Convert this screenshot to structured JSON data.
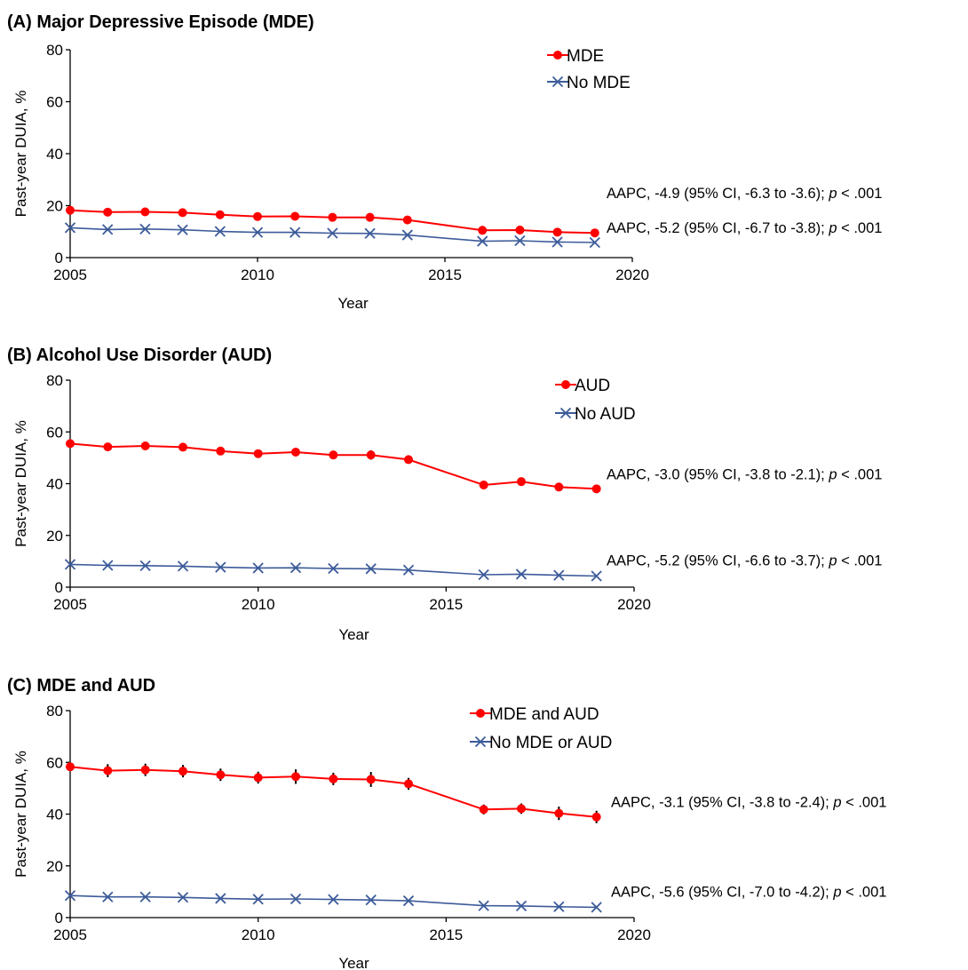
{
  "figure": {
    "background": "#ffffff"
  },
  "chart_data": [
    {
      "type": "line",
      "title": "(A) Major Depressive Episode (MDE)",
      "xlabel": "Year",
      "ylabel": "Past-year DUIA, %",
      "xlim": [
        2005,
        2020
      ],
      "ylim": [
        0,
        80
      ],
      "xticks": [
        "2005",
        "2010",
        "2015",
        "2020"
      ],
      "yticks": [
        "0",
        "20",
        "40",
        "60",
        "80"
      ],
      "grid": false,
      "legend_position": "top-right",
      "x": [
        2005,
        2006,
        2007,
        2008,
        2009,
        2010,
        2011,
        2012,
        2013,
        2014,
        2016,
        2017,
        2018,
        2019
      ],
      "series": [
        {
          "name": "MDE",
          "color": "#ff0000",
          "marker": "circle",
          "values": [
            18.2,
            17.5,
            17.6,
            17.3,
            16.5,
            15.8,
            15.9,
            15.5,
            15.5,
            14.5,
            10.5,
            10.6,
            9.8,
            9.5
          ],
          "error": [
            0.7,
            0.7,
            0.7,
            0.7,
            0.7,
            0.6,
            0.6,
            0.6,
            0.6,
            0.6,
            0.5,
            0.5,
            0.5,
            0.5
          ],
          "annotation": "AAPC, -4.9 (95% CI, -6.3 to -3.6); "
        },
        {
          "name": "No MDE",
          "color": "#3c5b9a",
          "marker": "x",
          "values": [
            11.5,
            10.8,
            11.0,
            10.7,
            10.1,
            9.7,
            9.7,
            9.4,
            9.3,
            8.7,
            6.3,
            6.5,
            6.0,
            5.8
          ],
          "annotation": "AAPC, -5.2 (95% CI, -6.7 to -3.8); "
        }
      ]
    },
    {
      "type": "line",
      "title": "(B) Alcohol Use Disorder (AUD)",
      "xlabel": "Year",
      "ylabel": "Past-year DUIA, %",
      "xlim": [
        2005,
        2020
      ],
      "ylim": [
        0,
        80
      ],
      "xticks": [
        "2005",
        "2010",
        "2015",
        "2020"
      ],
      "yticks": [
        "0",
        "20",
        "40",
        "60",
        "80"
      ],
      "grid": false,
      "legend_position": "top-right",
      "x": [
        2005,
        2006,
        2007,
        2008,
        2009,
        2010,
        2011,
        2012,
        2013,
        2014,
        2016,
        2017,
        2018,
        2019
      ],
      "series": [
        {
          "name": "AUD",
          "color": "#ff0000",
          "marker": "circle",
          "values": [
            55.5,
            54.2,
            54.6,
            54.1,
            52.6,
            51.6,
            52.2,
            51.1,
            51.1,
            49.3,
            39.5,
            40.8,
            38.7,
            38.0
          ],
          "error": [
            1.2,
            1.2,
            1.3,
            1.2,
            1.2,
            1.2,
            1.6,
            1.3,
            1.8,
            1.3,
            1.0,
            1.0,
            1.4,
            1.4
          ],
          "annotation": "AAPC, -3.0 (95% CI, -3.8 to -2.1); "
        },
        {
          "name": "No AUD",
          "color": "#3c5b9a",
          "marker": "x",
          "values": [
            8.8,
            8.4,
            8.3,
            8.1,
            7.7,
            7.4,
            7.5,
            7.2,
            7.1,
            6.6,
            4.8,
            5.0,
            4.6,
            4.3
          ],
          "annotation": "AAPC, -5.2 (95% CI, -6.6 to -3.7); "
        }
      ]
    },
    {
      "type": "line",
      "title": "(C) MDE and AUD",
      "xlabel": "Year",
      "ylabel": "Past-year DUIA, %",
      "xlim": [
        2005,
        2020
      ],
      "ylim": [
        0,
        80
      ],
      "xticks": [
        "2005",
        "2010",
        "2015",
        "2020"
      ],
      "yticks": [
        "0",
        "20",
        "40",
        "60",
        "80"
      ],
      "grid": false,
      "legend_position": "top-right",
      "x": [
        2005,
        2006,
        2007,
        2008,
        2009,
        2010,
        2011,
        2012,
        2013,
        2014,
        2016,
        2017,
        2018,
        2019
      ],
      "series": [
        {
          "name": "MDE and AUD",
          "color": "#ff0000",
          "marker": "circle",
          "values": [
            58.3,
            56.8,
            57.1,
            56.6,
            55.2,
            54.1,
            54.5,
            53.6,
            53.4,
            51.7,
            41.8,
            42.1,
            40.3,
            38.9
          ],
          "error": [
            1.2,
            2.5,
            2.4,
            2.4,
            2.4,
            2.3,
            2.8,
            2.4,
            2.9,
            2.3,
            1.9,
            2.0,
            2.6,
            2.4
          ],
          "annotation": "AAPC, -3.1 (95% CI, -3.8 to -2.4); "
        },
        {
          "name": "No MDE or AUD",
          "color": "#3c5b9a",
          "marker": "x",
          "values": [
            8.5,
            8.0,
            8.0,
            7.8,
            7.4,
            7.1,
            7.2,
            7.0,
            6.8,
            6.5,
            4.6,
            4.5,
            4.2,
            4.0
          ],
          "annotation": "AAPC, -5.6 (95% CI, -7.0 to -4.2); "
        }
      ]
    }
  ],
  "annotation_p": {
    "italic": "p",
    "rest": " < .001"
  }
}
